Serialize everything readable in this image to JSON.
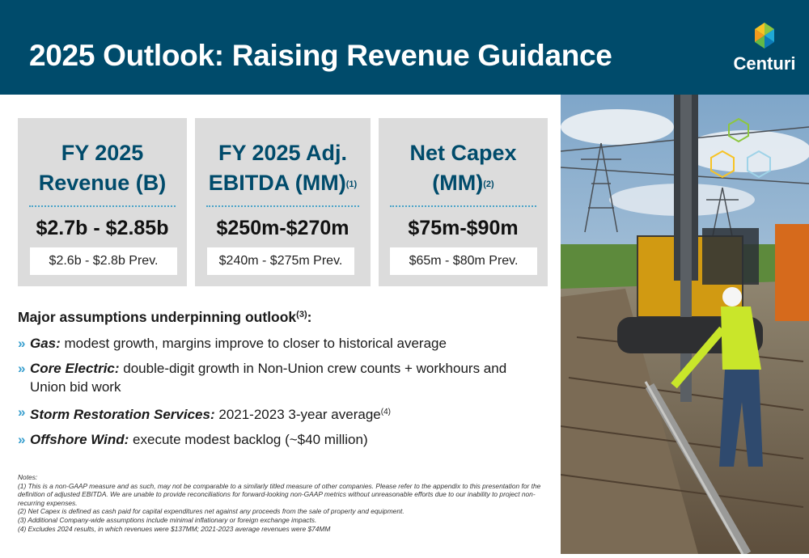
{
  "header": {
    "title": "2025 Outlook: Raising Revenue Guidance",
    "logo_text": "Centuri"
  },
  "cards": [
    {
      "title_line1": "FY 2025",
      "title_line2": "Revenue (B)",
      "title_sup": "",
      "value": "$2.7b - $2.85b",
      "prev": "$2.6b - $2.8b Prev."
    },
    {
      "title_line1": "FY 2025 Adj.",
      "title_line2": "EBITDA (MM)",
      "title_sup": "(1)",
      "value": "$250m-$270m",
      "prev": "$240m - $275m Prev."
    },
    {
      "title_line1": "Net Capex",
      "title_line2": "(MM)",
      "title_sup": "(2)",
      "value": "$75m-$90m",
      "prev": "$65m - $80m Prev."
    }
  ],
  "assumptions": {
    "heading": "Major assumptions underpinning outlook",
    "heading_sup": "(3)",
    "heading_tail": ":",
    "bullet_mark": "»",
    "items": [
      {
        "label": "Gas:",
        "text": " modest growth, margins improve to closer to historical average",
        "sup": ""
      },
      {
        "label": "Core Electric:",
        "text": " double-digit growth in Non-Union crew counts + workhours and Union bid work",
        "sup": ""
      },
      {
        "label": "Storm Restoration Services:",
        "text": " 2021-2023 3-year average",
        "sup": "(4)"
      },
      {
        "label": "Offshore Wind:",
        "text": " execute modest backlog (~$40 million)",
        "sup": ""
      }
    ]
  },
  "notes": {
    "heading": "Notes:",
    "lines": [
      "(1) This is a non-GAAP measure and as such, may not be comparable to a similarly titled measure of other companies. Please refer to the appendix to this presentation for the definition of adjusted EBITDA. We are unable to provide reconciliations for forward-looking non-GAAP metrics without unreasonable efforts due to our inability to project non-recurring expenses.",
      "(2) Net Capex is defined as cash paid for capital expenditures net against any proceeds from the sale of property and equipment.",
      "(3) Additional Company-wide assumptions include minimal inflationary or foreign exchange impacts.",
      "(4) Excludes 2024 results, in which revenues were $137MM; 2021-2023 average revenues were $74MM"
    ]
  },
  "colors": {
    "navy": "#004b6b",
    "accent": "#3aa0cf",
    "card_bg": "#dcdcdc"
  }
}
